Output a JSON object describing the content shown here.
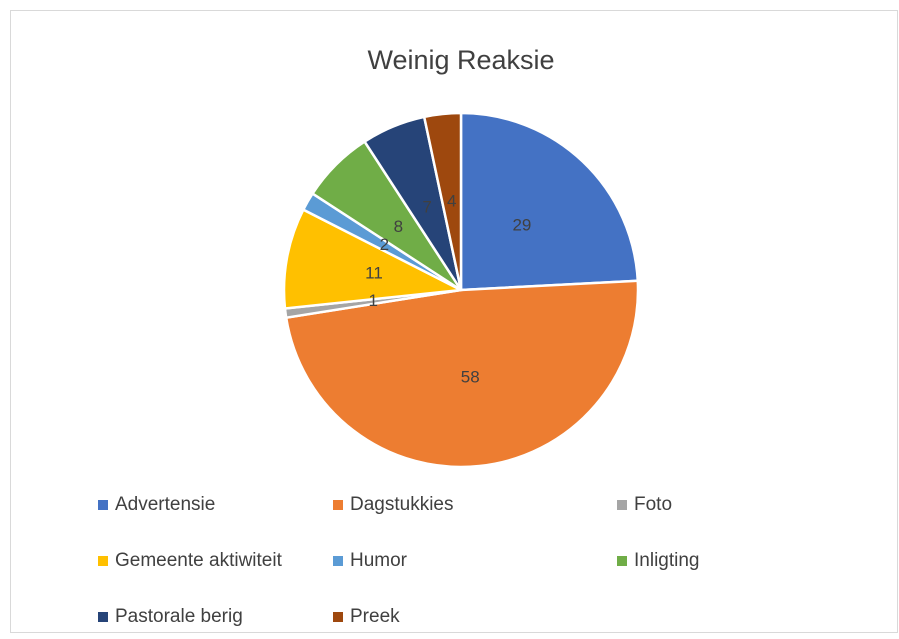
{
  "chart_data": {
    "type": "pie",
    "title": "Weinig Reaksie",
    "categories": [
      "Advertensie",
      "Dagstukkies",
      "Foto",
      "Gemeente aktiwiteit",
      "Humor",
      "Inligting",
      "Pastorale berig",
      "Preek"
    ],
    "values": [
      29,
      58,
      1,
      11,
      2,
      8,
      7,
      4
    ],
    "colors": [
      "#4472c4",
      "#ed7d31",
      "#a5a5a5",
      "#ffc000",
      "#5b9bd5",
      "#70ad47",
      "#264478",
      "#9e480e"
    ],
    "legend": "bottom"
  }
}
